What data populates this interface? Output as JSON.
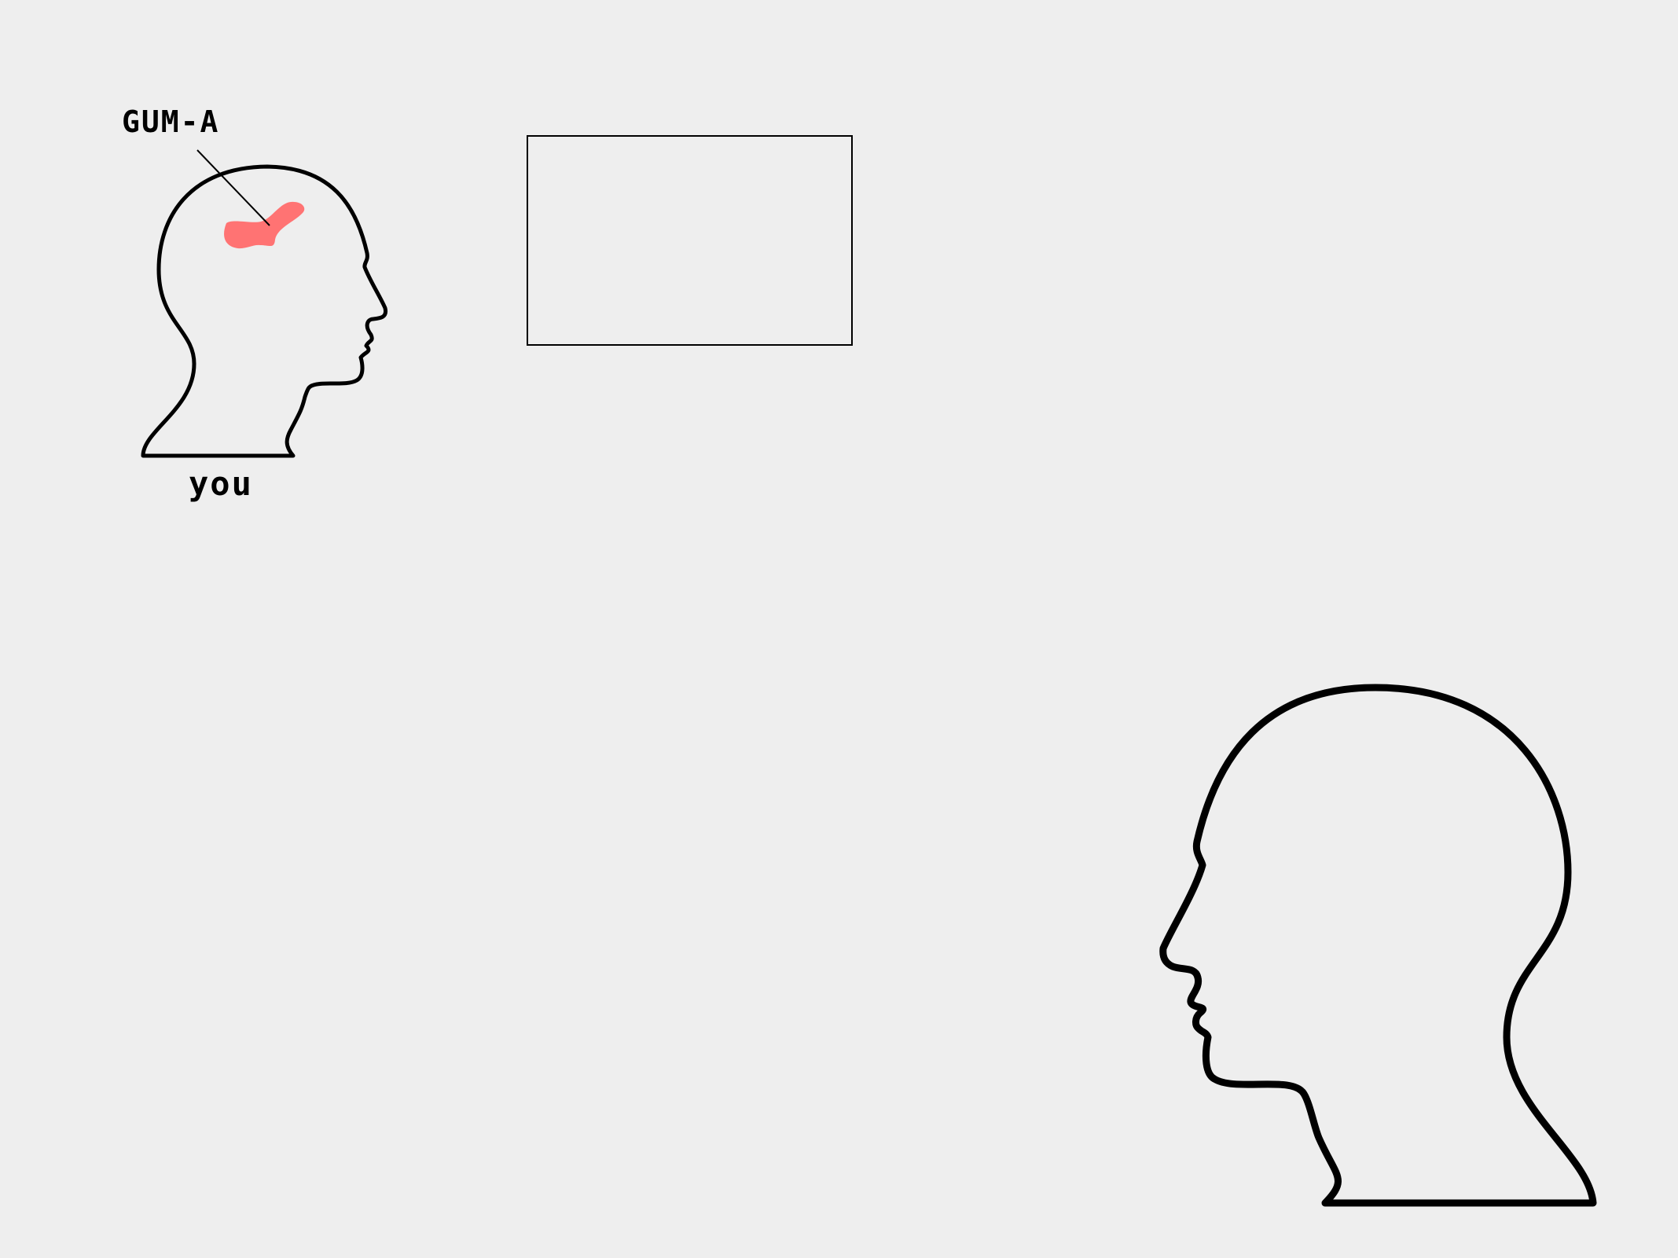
{
  "diagram": {
    "labels": {
      "region_label": "GUM-A",
      "person_label": "you"
    },
    "colors": {
      "background": "#eeeeee",
      "outline": "#000000",
      "highlight_region": "#ff7373"
    }
  }
}
